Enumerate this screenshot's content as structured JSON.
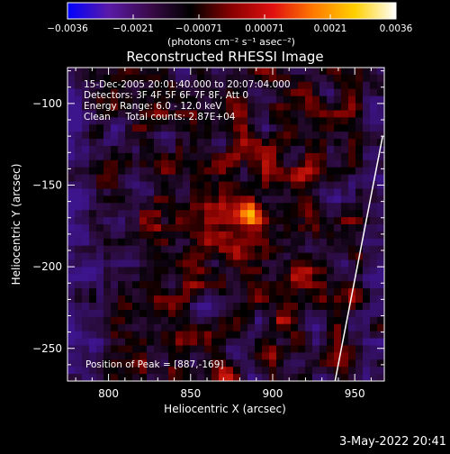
{
  "chart_data": {
    "type": "heatmap",
    "title": "Reconstructed RHESSI Image",
    "xlabel": "Heliocentric X (arcsec)",
    "ylabel": "Heliocentric Y (arcsec)",
    "xlim": [
      775,
      968
    ],
    "ylim": [
      -270,
      -78
    ],
    "x_ticks": [
      800,
      850,
      900,
      950
    ],
    "y_ticks": [
      -100,
      -150,
      -200,
      -250
    ],
    "colorbar": {
      "label": "(photons cm⁻² s⁻¹ asec⁻²)",
      "range": [
        -0.0036,
        0.0036
      ],
      "tick_labels": [
        "-0.0036",
        "-0.0021",
        "-0.00071",
        "0.00071",
        "0.0021",
        "0.0036"
      ],
      "colors": [
        "#0000ff",
        "#5a1aa8",
        "#3a0a4a",
        "#000000",
        "#8a0000",
        "#e01010",
        "#ff7a00",
        "#ffd000",
        "#ffffff"
      ]
    },
    "annotations": [
      "15-Dec-2005 20:01:40.000 to 20:07:04.000",
      "Detectors: 3F 4F 5F 6F 7F 8F, Att 0",
      "Energy Range: 6.0 - 12.0 keV",
      "Clean     Total counts: 2.87E+04"
    ],
    "peak_label": "Position of Peak = [887,-169]",
    "peak": {
      "x": 887,
      "y": -169,
      "value": 0.0036
    },
    "limb_line": {
      "x1": 938,
      "y1": -270,
      "x2": 967,
      "y2": -120
    }
  },
  "timestamp": "3-May-2022 20:41"
}
